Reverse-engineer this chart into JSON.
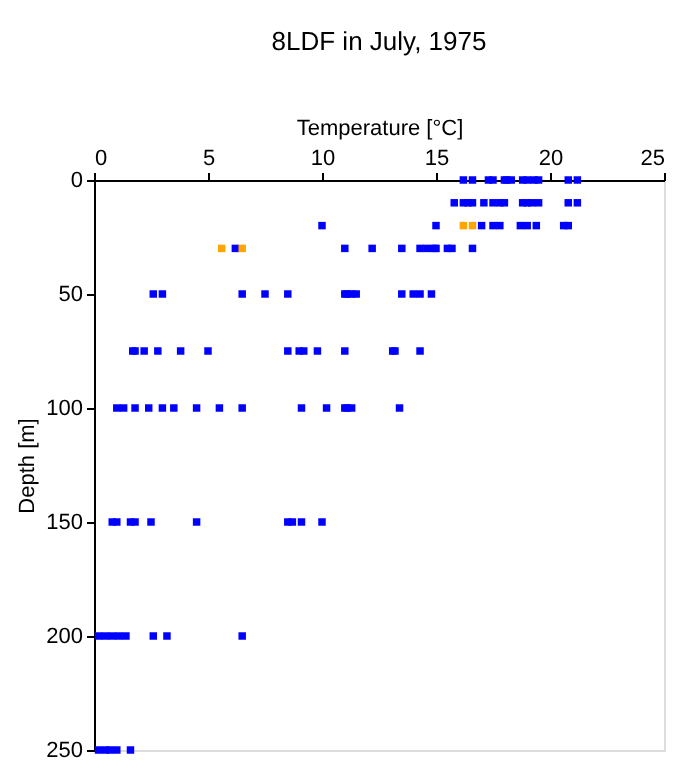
{
  "chart_data": {
    "type": "scatter",
    "title": "8LDF in July, 1975",
    "xlabel": "Temperature [°C]",
    "ylabel": "Depth [m]",
    "xlim": [
      0,
      25
    ],
    "xticks": [
      0,
      5,
      10,
      15,
      20,
      25
    ],
    "ylim": [
      250,
      0
    ],
    "yticks": [
      0,
      50,
      100,
      150,
      200,
      250
    ],
    "grid": false,
    "legend": false,
    "marker": "square",
    "series": [
      {
        "color": "#0000ff",
        "x": [
          16.2,
          16.6,
          17.3,
          17.5,
          18.0,
          18.1,
          18.3,
          18.8,
          19.0,
          19.3,
          19.5,
          20.8,
          21.2,
          15.8,
          16.2,
          16.4,
          16.6,
          17.1,
          17.5,
          17.8,
          18.0,
          18.8,
          19.0,
          19.2,
          19.5,
          20.8,
          21.2,
          10.0,
          15.0,
          17.0,
          17.5,
          17.8,
          18.7,
          19.0,
          19.4,
          20.6,
          20.8,
          6.2,
          11.0,
          12.2,
          13.5,
          14.3,
          14.6,
          14.9,
          15.0,
          15.5,
          15.7,
          16.6,
          2.6,
          3.0,
          6.5,
          7.5,
          8.5,
          11.0,
          11.1,
          11.3,
          11.5,
          13.5,
          14.0,
          14.3,
          14.8,
          1.7,
          1.8,
          2.2,
          2.8,
          3.8,
          5.0,
          8.5,
          9.0,
          9.2,
          9.8,
          11.0,
          13.1,
          13.2,
          14.3,
          1.0,
          1.3,
          1.8,
          2.4,
          3.0,
          3.5,
          4.5,
          5.5,
          6.5,
          9.1,
          10.2,
          11.0,
          11.1,
          11.3,
          13.4,
          0.8,
          1.0,
          1.6,
          1.8,
          2.5,
          4.5,
          8.5,
          8.7,
          9.1,
          10.0,
          0.2,
          0.5,
          0.8,
          1.1,
          1.4,
          2.6,
          3.2,
          6.5,
          0.2,
          0.5,
          0.7,
          1.0,
          1.6
        ],
        "values": [
          0,
          0,
          0,
          0,
          0,
          0,
          0,
          0,
          0,
          0,
          0,
          0,
          0,
          10,
          10,
          10,
          10,
          10,
          10,
          10,
          10,
          10,
          10,
          10,
          10,
          10,
          10,
          20,
          20,
          20,
          20,
          20,
          20,
          20,
          20,
          20,
          20,
          30,
          30,
          30,
          30,
          30,
          30,
          30,
          30,
          30,
          30,
          30,
          50,
          50,
          50,
          50,
          50,
          50,
          50,
          50,
          50,
          50,
          50,
          50,
          50,
          75,
          75,
          75,
          75,
          75,
          75,
          75,
          75,
          75,
          75,
          75,
          75,
          75,
          75,
          100,
          100,
          100,
          100,
          100,
          100,
          100,
          100,
          100,
          100,
          100,
          100,
          100,
          100,
          100,
          150,
          150,
          150,
          150,
          150,
          150,
          150,
          150,
          150,
          150,
          200,
          200,
          200,
          200,
          200,
          200,
          200,
          200,
          250,
          250,
          250,
          250,
          250
        ]
      },
      {
        "color": "#ffa500",
        "x": [
          16.2,
          16.6,
          5.6,
          6.5
        ],
        "values": [
          20,
          20,
          30,
          30
        ]
      }
    ]
  }
}
